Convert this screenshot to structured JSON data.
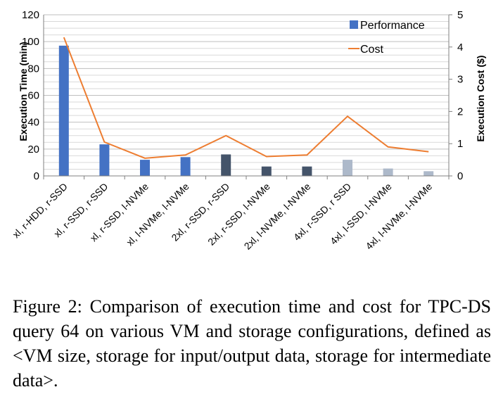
{
  "chart_data": {
    "type": "bar",
    "categories": [
      "xl, r-HDD, r-SSD",
      "xl, r-SSD, r-SSD",
      "xl, r-SSD, l-NVMe",
      "xl, l-NVMe, l-NVMe",
      "2xl, r-SSD, r-SSD",
      "2xl, r-SSD, l-NVMe",
      "2xl, l-NVMe, l-NVMe",
      "4xl, r-SSD, r SSD",
      "4xl, l-SSD, l-NVMe",
      "4xl, l-NVMe, l-NVMe"
    ],
    "series": [
      {
        "name": "Performance",
        "type": "bar",
        "axis": "left",
        "values": [
          97,
          23.5,
          12,
          14,
          16,
          7,
          7,
          12,
          5.5,
          3.5
        ]
      },
      {
        "name": "Cost",
        "type": "line",
        "axis": "right",
        "values": [
          4.3,
          1.05,
          0.55,
          0.65,
          1.25,
          0.6,
          0.65,
          1.85,
          0.9,
          0.75
        ]
      }
    ],
    "bar_colors": [
      "#4472C4",
      "#4472C4",
      "#4472C4",
      "#4472C4",
      "#44546A",
      "#44546A",
      "#44546A",
      "#ADB9CA",
      "#ADB9CA",
      "#ADB9CA"
    ],
    "line_color": "#ED7D31",
    "ylabel": "Execution Time (min)",
    "y2label": "Execution Cost ($)",
    "ylim": [
      0,
      120
    ],
    "yticks": [
      0,
      20,
      40,
      60,
      80,
      100,
      120
    ],
    "y2lim": [
      0,
      5
    ],
    "y2ticks": [
      0,
      1,
      2,
      3,
      4,
      5
    ],
    "grid": true,
    "legend_position": "top-right"
  },
  "caption": "Figure 2: Comparison of execution time and cost for TPC-DS query 64 on various VM and storage configurations, defined as <VM size, storage for input/output data, storage for intermediate data>."
}
